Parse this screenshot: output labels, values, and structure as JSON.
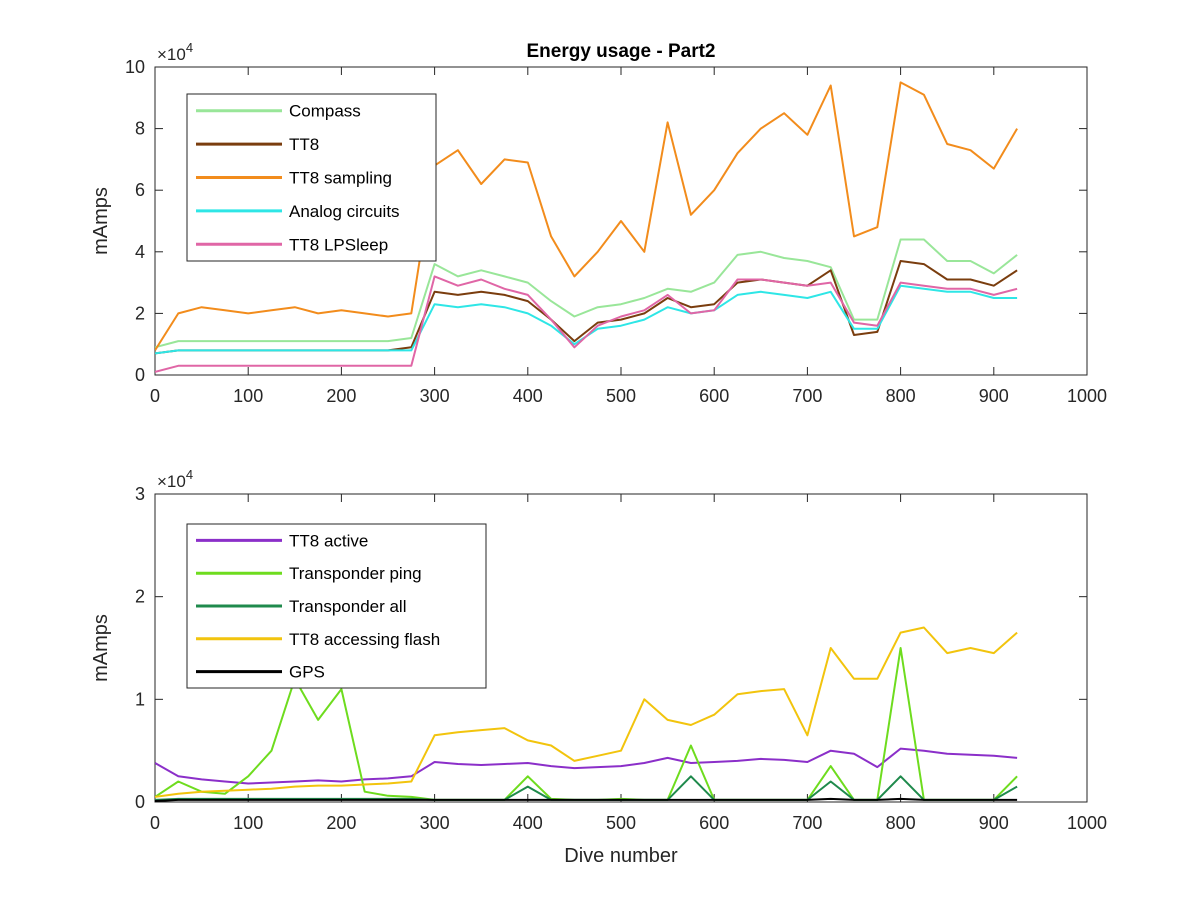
{
  "chart_data": [
    {
      "type": "line",
      "title": "Energy usage - Part2",
      "xlabel": "",
      "ylabel": "mAmps",
      "xlim": [
        0,
        1000
      ],
      "ylim": [
        0,
        100000
      ],
      "x_ticks": [
        "0",
        "100",
        "200",
        "300",
        "400",
        "500",
        "600",
        "700",
        "800",
        "900",
        "1000"
      ],
      "y_ticks": [
        "0",
        "2",
        "4",
        "6",
        "8",
        "10"
      ],
      "y_multiplier": "×10",
      "y_multiplier_exp": "4",
      "legend_position": "top-left",
      "x": [
        0,
        25,
        50,
        75,
        100,
        125,
        150,
        175,
        200,
        225,
        250,
        275,
        300,
        325,
        350,
        375,
        400,
        425,
        450,
        475,
        500,
        525,
        550,
        575,
        600,
        625,
        650,
        675,
        700,
        725,
        750,
        775,
        800,
        825,
        850,
        875,
        900,
        925
      ],
      "series": [
        {
          "name": "Compass",
          "color": "#99e699",
          "values": [
            9000,
            11000,
            11000,
            11000,
            11000,
            11000,
            11000,
            11000,
            11000,
            11000,
            11000,
            12000,
            36000,
            32000,
            34000,
            32000,
            30000,
            24000,
            19000,
            22000,
            23000,
            25000,
            28000,
            27000,
            30000,
            39000,
            40000,
            38000,
            37000,
            35000,
            18000,
            18000,
            44000,
            44000,
            37000,
            37000,
            33000,
            39000
          ]
        },
        {
          "name": "TT8",
          "color": "#7a3d0e",
          "values": [
            7000,
            8000,
            8000,
            8000,
            8000,
            8000,
            8000,
            8000,
            8000,
            8000,
            8000,
            9000,
            27000,
            26000,
            27000,
            26000,
            24000,
            18000,
            11000,
            17000,
            18000,
            20000,
            25000,
            22000,
            23000,
            30000,
            31000,
            30000,
            29000,
            34000,
            13000,
            14000,
            37000,
            36000,
            31000,
            31000,
            29000,
            34000
          ]
        },
        {
          "name": "TT8 sampling",
          "color": "#f28c1c",
          "values": [
            8000,
            20000,
            22000,
            21000,
            20000,
            21000,
            22000,
            20000,
            21000,
            20000,
            19000,
            20000,
            68000,
            73000,
            62000,
            70000,
            69000,
            45000,
            32000,
            40000,
            50000,
            40000,
            82000,
            52000,
            60000,
            72000,
            80000,
            85000,
            78000,
            94000,
            45000,
            48000,
            95000,
            91000,
            75000,
            73000,
            67000,
            80000
          ]
        },
        {
          "name": "Analog circuits",
          "color": "#2ee6e6",
          "values": [
            7000,
            8000,
            8000,
            8000,
            8000,
            8000,
            8000,
            8000,
            8000,
            8000,
            8000,
            8000,
            23000,
            22000,
            23000,
            22000,
            20000,
            16000,
            10000,
            15000,
            16000,
            18000,
            22000,
            20000,
            21000,
            26000,
            27000,
            26000,
            25000,
            27000,
            15000,
            15000,
            29000,
            28000,
            27000,
            27000,
            25000,
            25000
          ]
        },
        {
          "name": "TT8 LPSleep",
          "color": "#e066a6",
          "values": [
            1000,
            3000,
            3000,
            3000,
            3000,
            3000,
            3000,
            3000,
            3000,
            3000,
            3000,
            3000,
            32000,
            29000,
            31000,
            28000,
            26000,
            18000,
            9000,
            16000,
            19000,
            21000,
            26000,
            20000,
            21000,
            31000,
            31000,
            30000,
            29000,
            30000,
            17000,
            16000,
            30000,
            29000,
            28000,
            28000,
            26000,
            28000
          ]
        }
      ]
    },
    {
      "type": "line",
      "title": "",
      "xlabel": "Dive number",
      "ylabel": "mAmps",
      "xlim": [
        0,
        1000
      ],
      "ylim": [
        0,
        30000
      ],
      "x_ticks": [
        "0",
        "100",
        "200",
        "300",
        "400",
        "500",
        "600",
        "700",
        "800",
        "900",
        "1000"
      ],
      "y_ticks": [
        "0",
        "1",
        "2",
        "3"
      ],
      "y_multiplier": "×10",
      "y_multiplier_exp": "4",
      "legend_position": "top-left",
      "x": [
        0,
        25,
        50,
        75,
        100,
        125,
        150,
        175,
        200,
        225,
        250,
        275,
        300,
        325,
        350,
        375,
        400,
        425,
        450,
        475,
        500,
        525,
        550,
        575,
        600,
        625,
        650,
        675,
        700,
        725,
        750,
        775,
        800,
        825,
        850,
        875,
        900,
        925
      ],
      "series": [
        {
          "name": "TT8 active",
          "color": "#8b2fc9",
          "values": [
            3800,
            2500,
            2200,
            2000,
            1800,
            1900,
            2000,
            2100,
            2000,
            2200,
            2300,
            2500,
            3900,
            3700,
            3600,
            3700,
            3800,
            3500,
            3300,
            3400,
            3500,
            3800,
            4300,
            3800,
            3900,
            4000,
            4200,
            4100,
            3900,
            5000,
            4700,
            3400,
            5200,
            5000,
            4700,
            4600,
            4500,
            4300
          ]
        },
        {
          "name": "Transponder ping",
          "color": "#6edc1e",
          "values": [
            500,
            2000,
            1000,
            800,
            2500,
            5000,
            12000,
            8000,
            11000,
            1000,
            600,
            500,
            200,
            200,
            200,
            200,
            2500,
            300,
            200,
            200,
            300,
            200,
            200,
            5500,
            200,
            200,
            200,
            200,
            200,
            3500,
            200,
            200,
            15000,
            200,
            200,
            200,
            200,
            2500
          ]
        },
        {
          "name": "Transponder all",
          "color": "#1f8a4c",
          "values": [
            200,
            300,
            300,
            300,
            300,
            300,
            300,
            300,
            300,
            300,
            300,
            300,
            200,
            200,
            200,
            200,
            1500,
            200,
            200,
            200,
            200,
            200,
            200,
            2500,
            200,
            200,
            200,
            200,
            200,
            2000,
            200,
            200,
            2500,
            200,
            200,
            200,
            200,
            1500
          ]
        },
        {
          "name": "TT8 accessing flash",
          "color": "#f2c40d",
          "values": [
            500,
            800,
            1000,
            1100,
            1200,
            1300,
            1500,
            1600,
            1600,
            1700,
            1800,
            2000,
            6500,
            6800,
            7000,
            7200,
            6000,
            5500,
            4000,
            4500,
            5000,
            10000,
            8000,
            7500,
            8500,
            10500,
            10800,
            11000,
            6500,
            15000,
            12000,
            12000,
            16500,
            17000,
            14500,
            15000,
            14500,
            16500
          ]
        },
        {
          "name": "GPS",
          "color": "#000000",
          "values": [
            100,
            200,
            200,
            200,
            200,
            200,
            200,
            200,
            200,
            200,
            200,
            200,
            200,
            200,
            200,
            200,
            200,
            200,
            200,
            200,
            200,
            200,
            200,
            200,
            200,
            200,
            200,
            200,
            200,
            300,
            200,
            200,
            300,
            200,
            200,
            200,
            200,
            200
          ]
        }
      ]
    }
  ]
}
